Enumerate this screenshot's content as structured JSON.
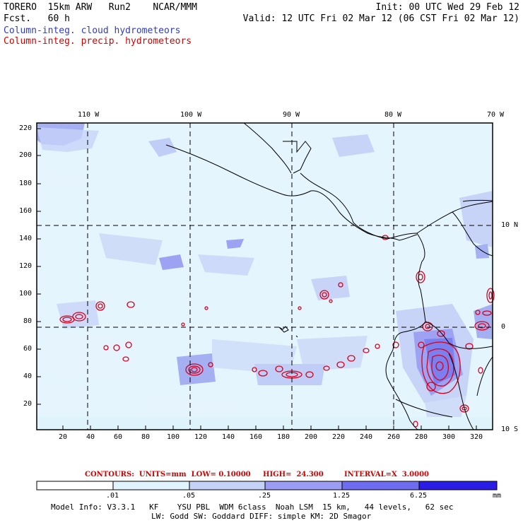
{
  "header": {
    "left_line1": "TORERO  15km ARW   Run2    NCAR/MMM",
    "left_line2": "Fcst.   60 h",
    "right_line1": "Init: 00 UTC Wed 29 Feb 12",
    "right_line2": "Valid: 12 UTC Fri 02 Mar 12 (06 CST Fri 02 Mar 12)",
    "legend_blue": "Column-integ. cloud hydrometeors",
    "legend_red": "Column-integ. precip. hydrometeors"
  },
  "top_axis": [
    "110 W",
    "100 W",
    "90 W",
    "80 W",
    "70 W"
  ],
  "right_axis": [
    "10 N",
    "0",
    "10 S"
  ],
  "left_axis": [
    "220",
    "200",
    "180",
    "160",
    "140",
    "120",
    "100",
    "80",
    "60",
    "40",
    "20"
  ],
  "bottom_axis": [
    "20",
    "40",
    "60",
    "80",
    "100",
    "120",
    "140",
    "160",
    "180",
    "200",
    "220",
    "240",
    "260",
    "280",
    "300",
    "320"
  ],
  "contour_line": {
    "label": "CONTOURS:  UNITS=mm  LOW= 0.10000",
    "high": "HIGH=  24.300",
    "interval": "INTERVAL=X  3.0000"
  },
  "colorbar": {
    "labels": [
      ".01",
      ".05",
      ".25",
      "1.25",
      "6.25"
    ],
    "unit": "mm",
    "colors": [
      "#ffffff",
      "#dff4ff",
      "#c4d2f8",
      "#9a9df3",
      "#6e6cf0",
      "#4a42ec",
      "#2a1de8"
    ]
  },
  "colors": {
    "cloud_light": "#dff3fd",
    "cloud_mid": "#c0cdf6",
    "cloud_strong": "#9ea2f2",
    "precip_contour": "#d8001c",
    "coast": "#000000"
  },
  "footer": {
    "line1": "Model Info: V3.3.1   KF    YSU PBL  WDM 6class  Noah LSM  15 km,   44 levels,   62 sec",
    "line2": "LW: Godd SW: Goddard DIFF: simple KM: 2D Smagor"
  }
}
